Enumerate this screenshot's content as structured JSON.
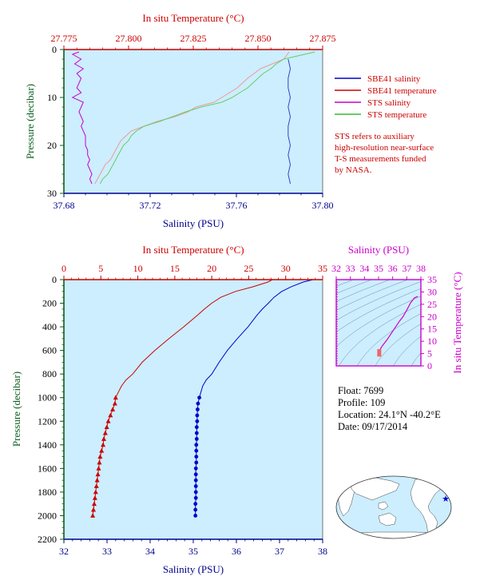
{
  "chart_data": [
    {
      "type": "line",
      "x_top_label": "In situ Temperature (°C)",
      "x_bottom_label": "Salinity (PSU)",
      "ylabel": "Pressure (decibar)",
      "x_top_ticks": [
        "27.775",
        "27.800",
        "27.825",
        "27.850",
        "27.875"
      ],
      "x_bottom_ticks": [
        "37.68",
        "37.72",
        "37.76",
        "37.80"
      ],
      "y_ticks": [
        "0",
        "10",
        "20",
        "30"
      ],
      "temp_range": [
        27.775,
        27.875
      ],
      "sal_range": [
        37.68,
        37.8
      ],
      "pressure_range": [
        0,
        30
      ],
      "legend_position": "right",
      "legend": [
        {
          "name": "SBE41 salinity",
          "color": "#0000cc"
        },
        {
          "name": "SBE41 temperature",
          "color": "#cc0000"
        },
        {
          "name": "STS salinity",
          "color": "#cc00cc"
        },
        {
          "name": "STS temperature",
          "color": "#33bb33"
        }
      ],
      "note_lines": [
        "STS refers to auxiliary",
        "high-resolution near-surface",
        "T-S measurements funded",
        "by NASA."
      ],
      "series": [
        {
          "name": "SBE41 salinity",
          "axis": "salinity",
          "color": "#3344cc",
          "pressure": [
            2,
            4,
            6,
            8,
            10,
            12,
            14,
            16,
            18,
            20,
            22,
            24,
            26,
            28
          ],
          "values": [
            37.784,
            37.785,
            37.784,
            37.784,
            37.785,
            37.784,
            37.785,
            37.784,
            37.784,
            37.785,
            37.784,
            37.785,
            37.784,
            37.785
          ]
        },
        {
          "name": "SBE41 temperature",
          "axis": "temperature",
          "color": "#ee9999",
          "pressure": [
            0.5,
            2,
            4,
            6,
            8,
            10,
            11,
            12,
            13,
            14,
            15,
            16,
            17,
            18,
            19,
            20,
            21,
            22,
            23,
            24,
            25,
            26,
            27,
            28
          ],
          "values": [
            27.862,
            27.86,
            27.851,
            27.846,
            27.842,
            27.836,
            27.833,
            27.826,
            27.823,
            27.818,
            27.811,
            27.806,
            27.801,
            27.799,
            27.797,
            27.796,
            27.795,
            27.794,
            27.793,
            27.791,
            27.79,
            27.789,
            27.788,
            27.787
          ]
        },
        {
          "name": "STS salinity",
          "axis": "salinity",
          "color": "#cc00cc",
          "pressure": [
            0.5,
            1,
            2,
            3,
            4,
            5,
            6,
            7,
            8,
            9,
            10,
            11,
            12,
            13,
            14,
            15,
            16,
            17,
            18,
            19,
            20,
            21,
            22,
            23,
            24,
            25,
            26,
            27,
            28
          ],
          "values": [
            37.687,
            37.684,
            37.688,
            37.685,
            37.689,
            37.686,
            37.688,
            37.687,
            37.686,
            37.688,
            37.684,
            37.689,
            37.688,
            37.687,
            37.688,
            37.689,
            37.688,
            37.689,
            37.69,
            37.69,
            37.69,
            37.691,
            37.691,
            37.692,
            37.691,
            37.692,
            37.693,
            37.692,
            37.693
          ]
        },
        {
          "name": "STS temperature",
          "axis": "temperature",
          "color": "#66cc66",
          "pressure": [
            0.5,
            1,
            2,
            3,
            4,
            5,
            6,
            7,
            8,
            9,
            10,
            11,
            12,
            13,
            14,
            15,
            16,
            17,
            18,
            19,
            20,
            21,
            22,
            23,
            24,
            25,
            26,
            27,
            28
          ],
          "values": [
            27.872,
            27.868,
            27.86,
            27.857,
            27.855,
            27.852,
            27.85,
            27.848,
            27.846,
            27.843,
            27.84,
            27.836,
            27.828,
            27.822,
            27.817,
            27.812,
            27.806,
            27.803,
            27.801,
            27.8,
            27.798,
            27.797,
            27.796,
            27.795,
            27.794,
            27.793,
            27.792,
            27.79,
            27.789
          ]
        }
      ]
    },
    {
      "type": "line",
      "x_top_label": "In situ Temperature (°C)",
      "x_bottom_label": "Salinity (PSU)",
      "ylabel": "Pressure (decibar)",
      "x_top_ticks": [
        "0",
        "5",
        "10",
        "15",
        "20",
        "25",
        "30",
        "35"
      ],
      "x_bottom_ticks": [
        "32",
        "33",
        "34",
        "35",
        "36",
        "37",
        "38"
      ],
      "y_ticks": [
        "0",
        "200",
        "400",
        "600",
        "800",
        "1000",
        "1200",
        "1400",
        "1600",
        "1800",
        "2000",
        "2200"
      ],
      "temp_range": [
        0,
        35
      ],
      "sal_range": [
        32,
        38
      ],
      "pressure_range": [
        0,
        2200
      ],
      "series": [
        {
          "name": "Temperature",
          "axis": "temperature",
          "color": "#cc0000",
          "pressure": [
            0,
            20,
            60,
            100,
            150,
            200,
            250,
            300,
            400,
            500,
            600,
            700,
            800,
            850,
            900,
            950,
            1000
          ],
          "values": [
            28.2,
            27.6,
            25.6,
            23.2,
            21.2,
            20.0,
            19.0,
            18.1,
            16.2,
            14.2,
            12.3,
            10.6,
            9.3,
            8.4,
            7.8,
            7.4,
            7.0
          ],
          "marker_pressure": [
            1000,
            1050,
            1100,
            1150,
            1200,
            1250,
            1300,
            1350,
            1400,
            1450,
            1500,
            1550,
            1600,
            1650,
            1700,
            1750,
            1800,
            1850,
            1900,
            1950,
            2000
          ],
          "marker_values": [
            7.0,
            6.9,
            6.6,
            6.3,
            6.0,
            5.8,
            5.6,
            5.4,
            5.3,
            5.1,
            4.9,
            4.8,
            4.7,
            4.6,
            4.5,
            4.4,
            4.3,
            4.2,
            4.1,
            4.0,
            3.9
          ]
        },
        {
          "name": "Salinity",
          "axis": "salinity",
          "color": "#0000cc",
          "pressure": [
            0,
            20,
            60,
            100,
            150,
            200,
            250,
            300,
            400,
            500,
            600,
            700,
            800,
            850,
            900,
            950,
            1000
          ],
          "values": [
            37.78,
            37.55,
            37.27,
            37.05,
            36.87,
            36.74,
            36.6,
            36.48,
            36.27,
            36.02,
            35.79,
            35.6,
            35.43,
            35.3,
            35.22,
            35.18,
            35.14
          ],
          "marker_pressure": [
            1000,
            1050,
            1100,
            1150,
            1200,
            1250,
            1300,
            1350,
            1400,
            1450,
            1500,
            1550,
            1600,
            1650,
            1700,
            1750,
            1800,
            1850,
            1900,
            1950,
            2000
          ],
          "marker_values": [
            35.14,
            35.11,
            35.1,
            35.09,
            35.09,
            35.08,
            35.08,
            35.08,
            35.07,
            35.07,
            35.07,
            35.07,
            35.06,
            35.06,
            35.06,
            35.06,
            35.06,
            35.06,
            35.05,
            35.05,
            35.05
          ]
        }
      ]
    },
    {
      "type": "line",
      "x_top_label": "Salinity (PSU)",
      "ylabel_right": "In situ Temperature (°C)",
      "x_top_ticks": [
        "32",
        "33",
        "34",
        "35",
        "36",
        "37",
        "38"
      ],
      "y_ticks": [
        "0",
        "5",
        "10",
        "15",
        "20",
        "25",
        "30",
        "35"
      ],
      "sal_range": [
        32,
        38
      ],
      "temp_range": [
        0,
        35
      ],
      "grid": "density contours",
      "series": [
        {
          "name": "T-S",
          "color": "#cc00cc",
          "salinity": [
            35.05,
            35.08,
            35.14,
            35.3,
            35.6,
            36.02,
            36.48,
            36.74,
            37.05,
            37.27,
            37.55,
            37.78
          ],
          "temperature": [
            3.9,
            5.0,
            7.0,
            8.4,
            10.6,
            14.2,
            18.1,
            20.0,
            23.2,
            25.6,
            27.6,
            28.2
          ]
        }
      ]
    }
  ],
  "float_info": {
    "float_line": "Float:  7699",
    "profile_line": "Profile:  109",
    "location_line": "Location:  24.1°N  -40.2°E",
    "date_line": "Date:  09/17/2014"
  },
  "map": {
    "marker_color": "#0000cc"
  },
  "colors": {
    "panel_bg": "#cceeff",
    "temp_axis": "#cc0000",
    "sal_axis": "#00008b",
    "pressure_axis": "#0b5e1c",
    "ts_axis": "#cc00cc"
  }
}
